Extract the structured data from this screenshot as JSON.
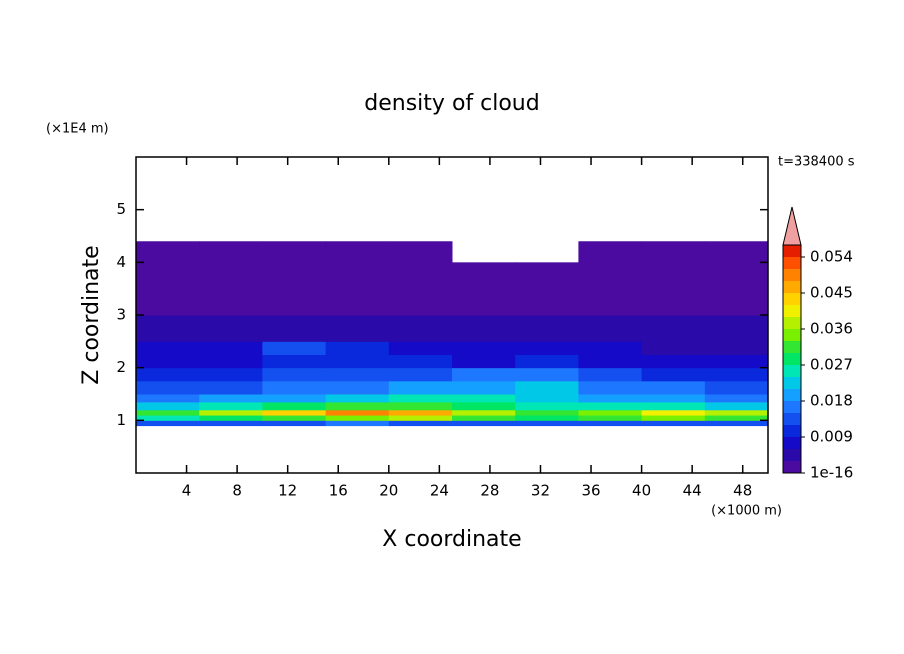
{
  "chart_data": {
    "type": "heatmap",
    "title": "density of cloud",
    "x_label": "X coordinate",
    "y_label": "Z coordinate",
    "x_unit": "(×1000 m)",
    "y_unit": "(×1E4 m)",
    "annotation": "t=338400 s",
    "xlim": [
      0,
      50
    ],
    "ylim": [
      0,
      6
    ],
    "xticks": [
      4,
      8,
      12,
      16,
      20,
      24,
      28,
      32,
      36,
      40,
      44,
      48
    ],
    "yticks": [
      1,
      2,
      3,
      4,
      5
    ],
    "xbins": [
      0,
      5,
      10,
      15,
      20,
      25,
      30,
      35,
      40,
      45,
      50
    ],
    "ybins": [
      0.9,
      1.0,
      1.1,
      1.2,
      1.35,
      1.5,
      1.75,
      2,
      2.25,
      2.5,
      2.75,
      3,
      3.5,
      4,
      4.4
    ],
    "values": [
      [
        0.012,
        0.014,
        0.012,
        0.015,
        0.013,
        0.012,
        0.014,
        0.012,
        0.013,
        0.012
      ],
      [
        0.024,
        0.027,
        0.03,
        0.033,
        0.036,
        0.03,
        0.027,
        0.03,
        0.033,
        0.03
      ],
      [
        0.03,
        0.036,
        0.042,
        0.048,
        0.046,
        0.036,
        0.03,
        0.033,
        0.04,
        0.036
      ],
      [
        0.021,
        0.024,
        0.027,
        0.03,
        0.03,
        0.027,
        0.024,
        0.024,
        0.024,
        0.021
      ],
      [
        0.015,
        0.018,
        0.02,
        0.021,
        0.024,
        0.024,
        0.021,
        0.018,
        0.018,
        0.015
      ],
      [
        0.012,
        0.013,
        0.015,
        0.017,
        0.018,
        0.02,
        0.021,
        0.017,
        0.015,
        0.012
      ],
      [
        0.009,
        0.01,
        0.012,
        0.013,
        0.014,
        0.015,
        0.016,
        0.013,
        0.011,
        0.009
      ],
      [
        0.007,
        0.008,
        0.01,
        0.011,
        0.009,
        0.008,
        0.009,
        0.008,
        0.007,
        0.006
      ],
      [
        0.006,
        0.007,
        0.012,
        0.009,
        0.007,
        0.006,
        0.007,
        0.006,
        0.005,
        0.005
      ],
      [
        0.004,
        0.005,
        0.005,
        0.005,
        0.004,
        0.004,
        0.004,
        0.005,
        0.004,
        0.004
      ],
      [
        0.003,
        0.004,
        0.004,
        0.004,
        0.003,
        0.004,
        0.004,
        0.003,
        0.003,
        0.003
      ],
      [
        0.002,
        0.002,
        0.002,
        0.002,
        0.002,
        0.002,
        0.002,
        0.002,
        0.002,
        0.002
      ],
      [
        0.001,
        0.001,
        0.001,
        0.001,
        0.001,
        0.001,
        0.001,
        0.001,
        0.001,
        0.001
      ],
      [
        0.001,
        0.001,
        0.001,
        0.001,
        0.001,
        null,
        null,
        0.001,
        0.001,
        0.001
      ]
    ],
    "levels": [
      1e-16,
      0.003,
      0.006,
      0.009,
      0.012,
      0.015,
      0.018,
      0.021,
      0.024,
      0.027,
      0.03,
      0.033,
      0.036,
      0.039,
      0.042,
      0.045,
      0.048,
      0.051,
      0.054,
      0.057
    ],
    "colors": [
      "#4b0aa0",
      "#2a0aa8",
      "#140ac8",
      "#0a28dc",
      "#1450f0",
      "#1e78ff",
      "#14a0ff",
      "#00c8e6",
      "#00e6b4",
      "#00e664",
      "#32e632",
      "#78f000",
      "#b4f000",
      "#f0f000",
      "#ffd200",
      "#ffaa00",
      "#ff8200",
      "#ff5000",
      "#e61e00"
    ],
    "extend_color": "#f0a0a0",
    "colorbar_ticks": [
      {
        "value": 1e-16,
        "label": "1e-16"
      },
      0.009,
      0.018,
      0.027,
      0.036,
      0.045,
      0.054
    ]
  }
}
